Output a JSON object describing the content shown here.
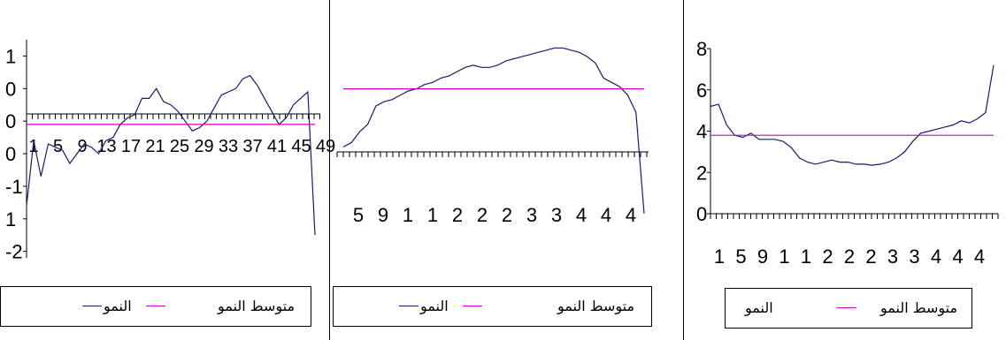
{
  "colors": {
    "growth": "#1a1a6e",
    "average": "#cc00cc"
  },
  "chart_data": [
    {
      "type": "line",
      "ylim": [
        -2.1,
        1.25
      ],
      "y_ticks": [
        {
          "v": 1,
          "label": "1"
        },
        {
          "v": 0.5,
          "label": "0"
        },
        {
          "v": 0,
          "label": "0"
        },
        {
          "v": -0.5,
          "label": "0"
        },
        {
          "v": -1,
          "label": "-1"
        },
        {
          "v": -1.5,
          "label": "1"
        },
        {
          "v": -2,
          "label": "-2"
        }
      ],
      "x_tick_labels": [
        "1",
        "5",
        "9",
        "13",
        "17",
        "21",
        "25",
        "29",
        "33",
        "37",
        "41",
        "45",
        "49"
      ],
      "series": [
        {
          "name": "النمو",
          "color_key": "growth",
          "values": [
            -1.3,
            -0.3,
            -0.85,
            -0.35,
            -0.4,
            -0.45,
            -0.65,
            -0.5,
            -0.35,
            -0.4,
            -0.5,
            -0.3,
            -0.25,
            -0.05,
            0.05,
            0.1,
            0.35,
            0.35,
            0.5,
            0.3,
            0.25,
            0.15,
            0,
            -0.15,
            -0.1,
            0,
            0.2,
            0.4,
            0.45,
            0.5,
            0.65,
            0.7,
            0.55,
            0.35,
            0.15,
            -0.05,
            0.05,
            0.25,
            0.35,
            0.45,
            -1.75
          ]
        },
        {
          "name": "متوسط النمو",
          "color_key": "average",
          "values": [
            -0.05,
            -0.05,
            -0.05,
            -0.05,
            -0.05,
            -0.05,
            -0.05,
            -0.05,
            -0.05,
            -0.05,
            -0.05,
            -0.05,
            -0.05,
            -0.05,
            -0.05,
            -0.05,
            -0.05,
            -0.05,
            -0.05,
            -0.05,
            -0.05,
            -0.05,
            -0.05,
            -0.05,
            -0.05,
            -0.05,
            -0.05,
            -0.05,
            -0.05,
            -0.05,
            -0.05,
            -0.05,
            -0.05,
            -0.05,
            -0.05,
            -0.05,
            -0.05,
            -0.05,
            -0.05,
            -0.05,
            -0.05
          ]
        }
      ],
      "legend": [
        "النمو",
        "متوسط النمو"
      ]
    },
    {
      "type": "line",
      "ylim": [
        -6,
        5.5
      ],
      "x_tick_labels": [
        "5",
        "9",
        "1",
        "1",
        "2",
        "2",
        "2",
        "3",
        "3",
        "4",
        "4",
        "4"
      ],
      "series": [
        {
          "name": "النمو",
          "color_key": "growth",
          "values": [
            -0.1,
            0.1,
            0.6,
            0.95,
            1.8,
            2,
            2.1,
            2.3,
            2.5,
            2.6,
            2.8,
            2.9,
            3.1,
            3.2,
            3.4,
            3.6,
            3.7,
            3.6,
            3.6,
            3.7,
            3.9,
            4,
            4.1,
            4.2,
            4.3,
            4.4,
            4.5,
            4.5,
            4.4,
            4.3,
            4.1,
            3.8,
            3.1,
            2.9,
            2.7,
            2.3,
            1.5,
            -3.2
          ]
        },
        {
          "name": "متوسط النمو",
          "color_key": "average",
          "values": [
            2.6,
            2.6,
            2.6,
            2.6,
            2.6,
            2.6,
            2.6,
            2.6,
            2.6,
            2.6,
            2.6,
            2.6,
            2.6,
            2.6,
            2.6,
            2.6,
            2.6,
            2.6,
            2.6,
            2.6,
            2.6,
            2.6,
            2.6,
            2.6,
            2.6,
            2.6,
            2.6,
            2.6,
            2.6,
            2.6,
            2.6,
            2.6,
            2.6,
            2.6,
            2.6,
            2.6,
            2.6,
            2.6
          ]
        }
      ],
      "legend": [
        "النمو",
        "متوسط النمو"
      ]
    },
    {
      "type": "line",
      "ylim": [
        0,
        8
      ],
      "y_ticks": [
        {
          "v": 8,
          "label": "8"
        },
        {
          "v": 6,
          "label": "6"
        },
        {
          "v": 4,
          "label": "4"
        },
        {
          "v": 2,
          "label": "2"
        },
        {
          "v": 0,
          "label": "0"
        }
      ],
      "x_tick_labels": [
        "1",
        "5",
        "9",
        "1",
        "1",
        "2",
        "2",
        "2",
        "3",
        "3",
        "4",
        "4",
        "4"
      ],
      "series": [
        {
          "name": "النمو",
          "color_key": "growth",
          "values": [
            5.2,
            5.3,
            4.3,
            3.8,
            3.7,
            3.9,
            3.6,
            3.6,
            3.6,
            3.5,
            3.2,
            2.7,
            2.5,
            2.4,
            2.5,
            2.6,
            2.5,
            2.5,
            2.4,
            2.4,
            2.35,
            2.4,
            2.5,
            2.7,
            3,
            3.5,
            3.9,
            4,
            4.1,
            4.2,
            4.3,
            4.5,
            4.4,
            4.6,
            4.9,
            7.2
          ]
        },
        {
          "name": "متوسط النمو",
          "color_key": "average",
          "values": [
            3.8,
            3.8,
            3.8,
            3.8,
            3.8,
            3.8,
            3.8,
            3.8,
            3.8,
            3.8,
            3.8,
            3.8,
            3.8,
            3.8,
            3.8,
            3.8,
            3.8,
            3.8,
            3.8,
            3.8,
            3.8,
            3.8,
            3.8,
            3.8,
            3.8,
            3.8,
            3.8,
            3.8,
            3.8,
            3.8,
            3.8,
            3.8,
            3.8,
            3.8,
            3.8,
            3.8
          ]
        }
      ],
      "legend": [
        "النمو",
        "متوسط النمو"
      ]
    }
  ]
}
